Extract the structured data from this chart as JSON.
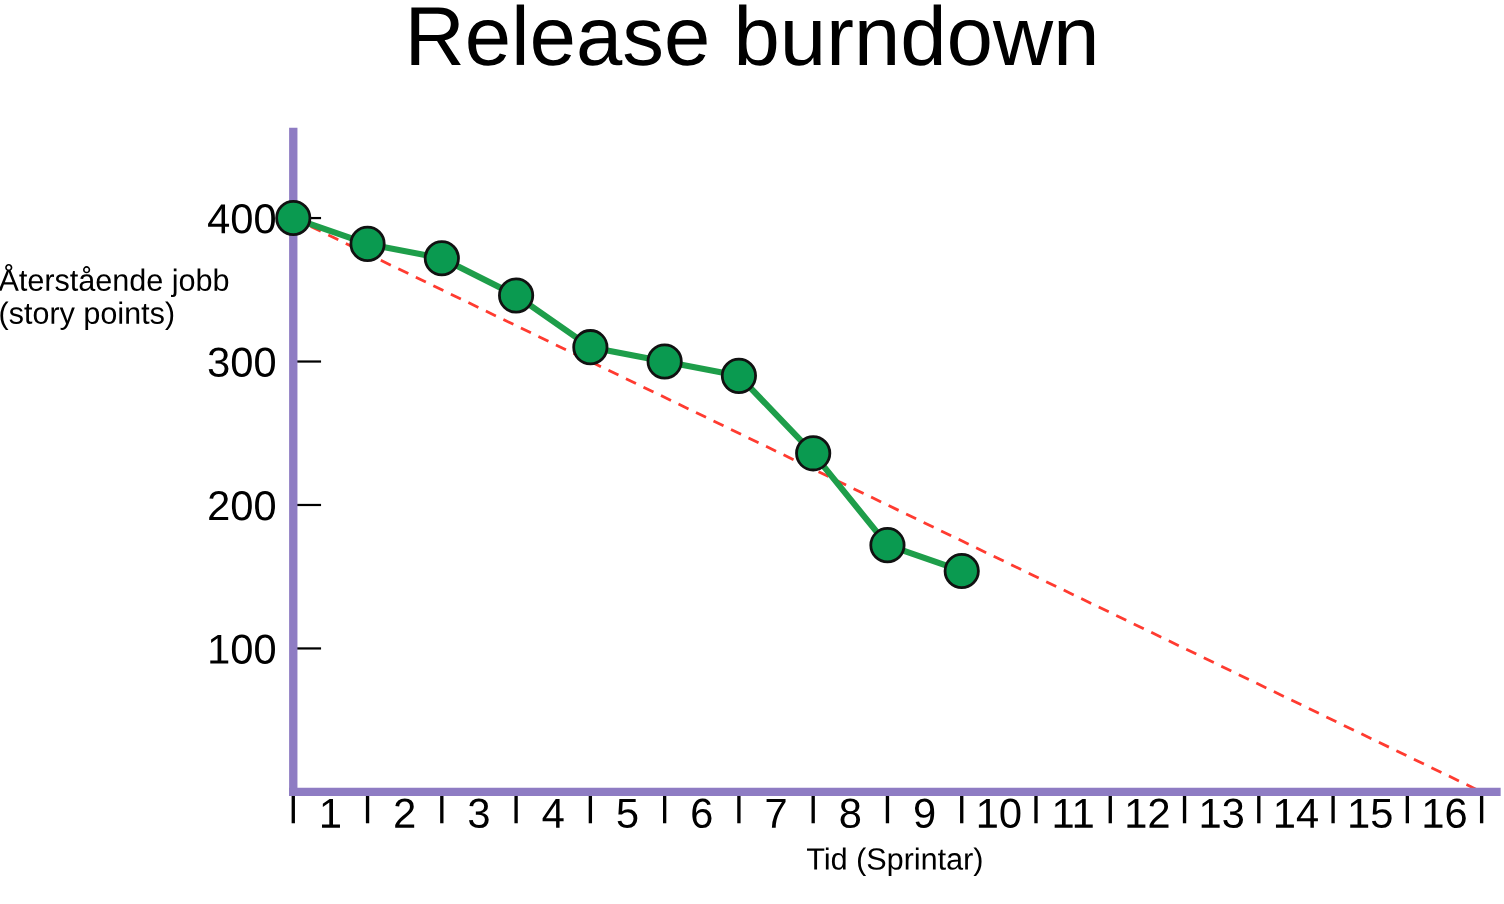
{
  "chart_data": {
    "type": "line",
    "title": "Release burndown",
    "xlabel": "Tid (Sprintar)",
    "ylabel": "Återstående jobb\n(story points)",
    "x": [
      0,
      1,
      2,
      3,
      4,
      5,
      6,
      7,
      8,
      9
    ],
    "series": [
      {
        "color": "#1e9e4a",
        "marker": "circle",
        "values": [
          400,
          382,
          372,
          346,
          310,
          300,
          290,
          236,
          172,
          154
        ]
      },
      {
        "color": "#ff3b30",
        "line_style": "dashed",
        "marker": "none",
        "x": [
          0,
          16
        ],
        "values": [
          400,
          0
        ]
      }
    ],
    "xlim": [
      0,
      16.2
    ],
    "ylim": [
      0,
      460
    ],
    "xticks": [
      {
        "value": 0,
        "label": null
      },
      {
        "value": 0.5,
        "label": "1"
      },
      {
        "value": 1,
        "label": null
      },
      {
        "value": 1.5,
        "label": "2"
      },
      {
        "value": 2,
        "label": null
      },
      {
        "value": 2.5,
        "label": "3"
      },
      {
        "value": 3,
        "label": null
      },
      {
        "value": 3.5,
        "label": "4"
      },
      {
        "value": 4,
        "label": null
      },
      {
        "value": 4.5,
        "label": "5"
      },
      {
        "value": 5,
        "label": null
      },
      {
        "value": 5.5,
        "label": "6"
      },
      {
        "value": 6,
        "label": null
      },
      {
        "value": 6.5,
        "label": "7"
      },
      {
        "value": 7,
        "label": null
      },
      {
        "value": 7.5,
        "label": "8"
      },
      {
        "value": 8,
        "label": null
      },
      {
        "value": 8.5,
        "label": "9"
      },
      {
        "value": 9,
        "label": null
      },
      {
        "value": 9.5,
        "label": "10"
      },
      {
        "value": 10,
        "label": null
      },
      {
        "value": 10.5,
        "label": "11"
      },
      {
        "value": 11,
        "label": null
      },
      {
        "value": 11.5,
        "label": "12"
      },
      {
        "value": 12,
        "label": null
      },
      {
        "value": 12.5,
        "label": "13"
      },
      {
        "value": 13,
        "label": null
      },
      {
        "value": 13.5,
        "label": "14"
      },
      {
        "value": 14,
        "label": null
      },
      {
        "value": 14.5,
        "label": "15"
      },
      {
        "value": 15,
        "label": null
      },
      {
        "value": 15.5,
        "label": "16"
      },
      {
        "value": 16,
        "label": null
      }
    ],
    "yticks": [
      100,
      200,
      300,
      400
    ],
    "grid": false,
    "legend": false
  }
}
